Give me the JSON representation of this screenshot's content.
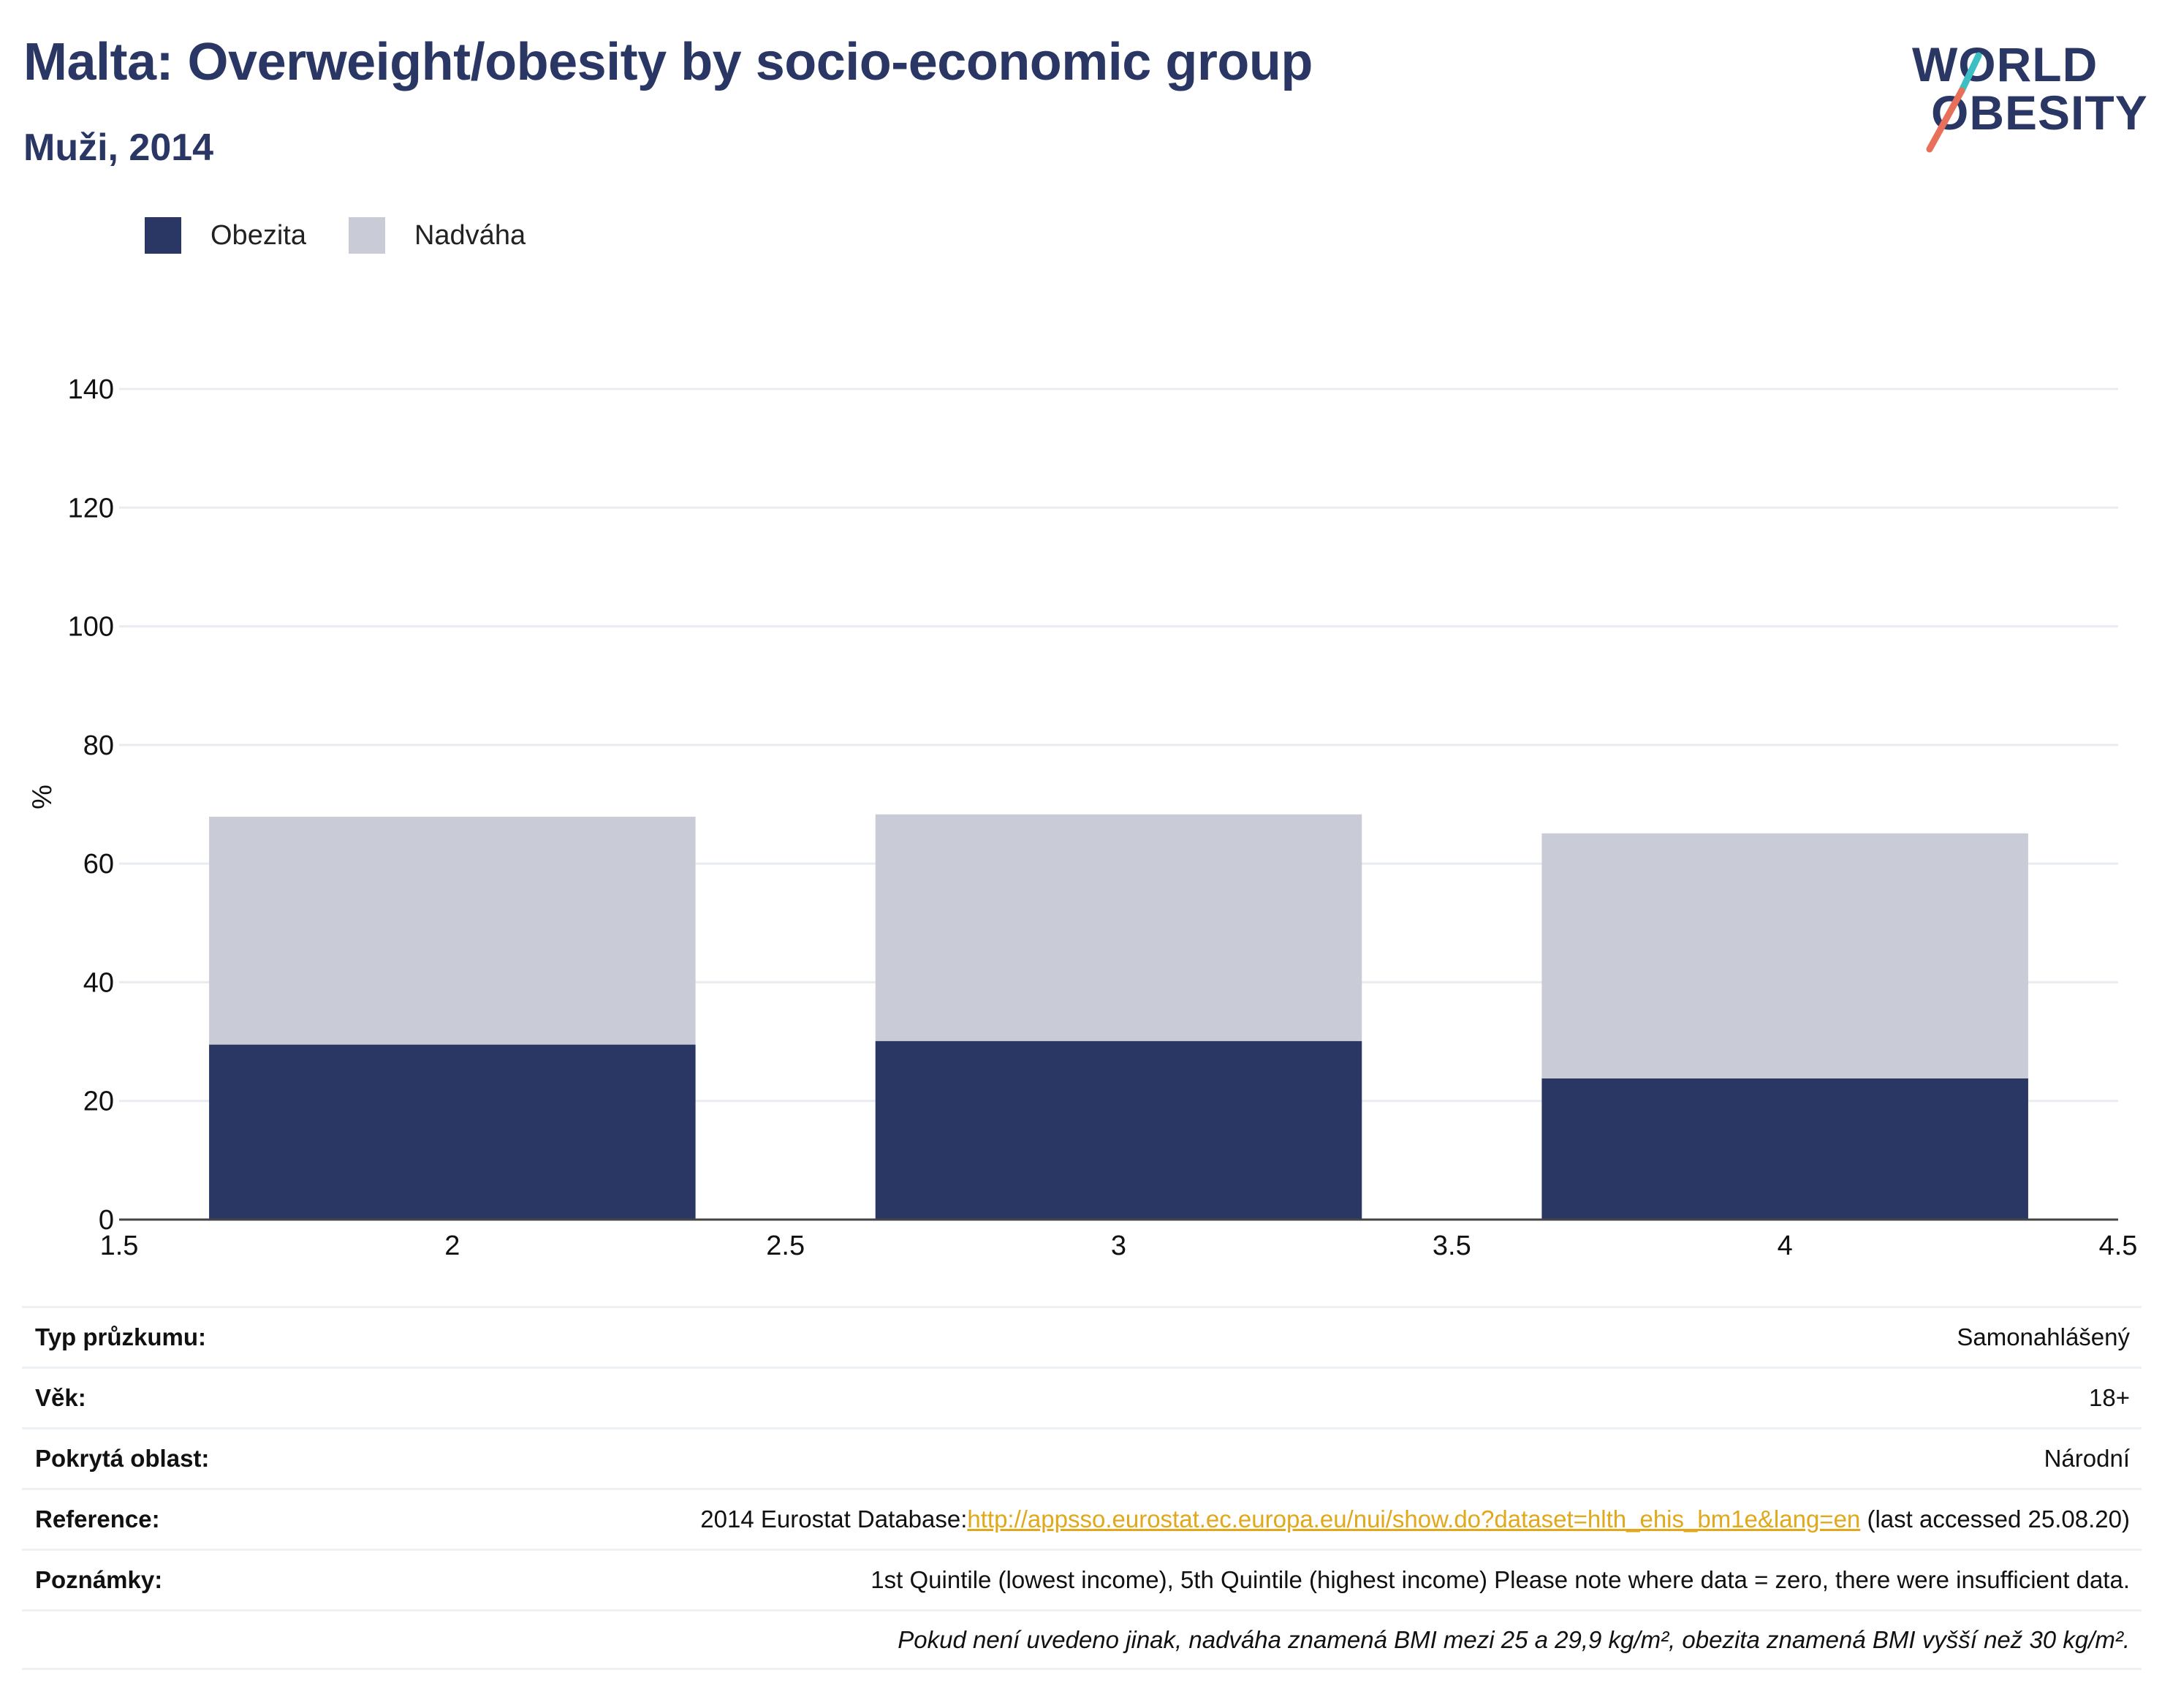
{
  "header": {
    "title": "Malta: Overweight/obesity by socio-economic group",
    "subtitle": "Muži, 2014"
  },
  "logo": {
    "line1": "WORLD",
    "line2": "OBESITY",
    "colors": {
      "text": "#2a3765",
      "slash_top": "#3bbfc4",
      "slash_bottom": "#e8705a"
    }
  },
  "legend": [
    {
      "label": "Obezita",
      "color": "#2a3765"
    },
    {
      "label": "Nadváha",
      "color": "#c9ccd7"
    }
  ],
  "chart_data": {
    "type": "bar",
    "stacked": true,
    "ylabel": "%",
    "xlabel": "",
    "ylim": [
      0,
      140
    ],
    "xlim": [
      1.5,
      4.5
    ],
    "yticks": [
      0,
      20,
      40,
      60,
      80,
      100,
      120,
      140
    ],
    "xticks": [
      "1.5",
      "2",
      "2.5",
      "3",
      "3.5",
      "4",
      "4.5"
    ],
    "grid": true,
    "legend_position": "top-left",
    "x": [
      2,
      3,
      4
    ],
    "series": [
      {
        "name": "Obezita",
        "color": "#2a3765",
        "values": [
          29.5,
          30.1,
          23.8
        ]
      },
      {
        "name": "Nadváha",
        "color": "#c9ccd7",
        "values": [
          38.4,
          38.2,
          41.3
        ]
      }
    ]
  },
  "info": {
    "survey_type": {
      "label": "Typ průzkumu:",
      "value": "Samonahlášený"
    },
    "age": {
      "label": "Věk:",
      "value": "18+"
    },
    "coverage": {
      "label": "Pokrytá oblast:",
      "value": "Národní"
    },
    "reference": {
      "label": "Reference:",
      "prefix": "2014 Eurostat Database:",
      "link": "http://appsso.eurostat.ec.europa.eu/nui/show.do?dataset=hlth_ehis_bm1e&lang=en",
      "suffix": " (last accessed 25.08.20)"
    },
    "notes": {
      "label": "Poznámky:",
      "value": "1st Quintile (lowest income), 5th Quintile (highest income) Please note where data = zero, there were insufficient data."
    },
    "footnote": "Pokud není uvedeno jinak, nadváha znamená BMI mezi 25 a 29,9 kg/m², obezita znamená BMI vyšší než 30 kg/m²."
  }
}
